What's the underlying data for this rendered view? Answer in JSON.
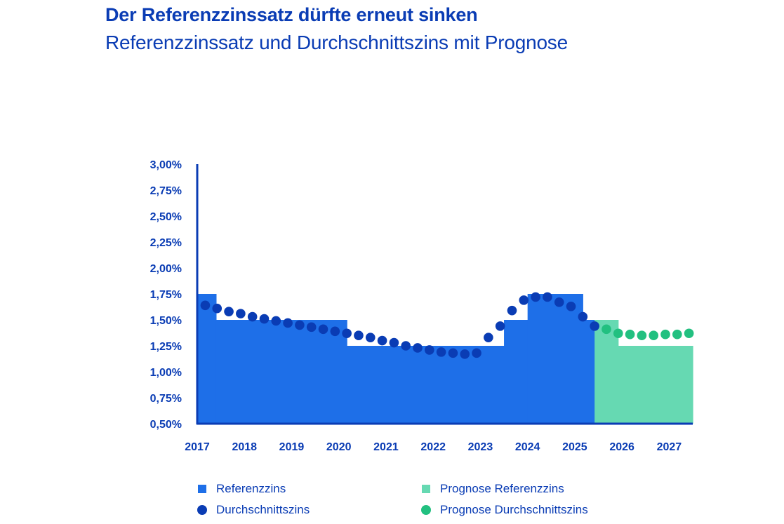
{
  "header": {
    "title": "Der Referenzzinssatz dürfte erneut sinken",
    "subtitle": "Referenzzinssatz und Durchschnittszins mit Prognose"
  },
  "legend": {
    "ref": "Referenzzins",
    "avg": "Durchschnittszins",
    "ref_forecast": "Prognose Referenzzins",
    "avg_forecast": "Prognose Durchschnittszins"
  },
  "colors": {
    "ref": "#1e6fe8",
    "avg": "#0a3cb4",
    "ref_forecast": "#66d9b2",
    "avg_forecast": "#22c080",
    "axis": "#0a3cb4"
  },
  "chart_data": {
    "type": "area",
    "title": "Der Referenzzinssatz dürfte erneut sinken",
    "subtitle": "Referenzzinssatz und Durchschnittszins mit Prognose",
    "xlabel": "",
    "ylabel": "",
    "ylim": [
      0.5,
      3.0
    ],
    "xlim": [
      2017,
      2027.5
    ],
    "y_ticks": [
      "0,50%",
      "0,75%",
      "1,00%",
      "1,25%",
      "1,50%",
      "1,75%",
      "2,00%",
      "2,25%",
      "2,50%",
      "2,75%",
      "3,00%"
    ],
    "x_ticks": [
      "2017",
      "2018",
      "2019",
      "2020",
      "2021",
      "2022",
      "2023",
      "2024",
      "2025",
      "2026",
      "2027"
    ],
    "grid": false,
    "legend_position": "bottom",
    "series": [
      {
        "name": "Referenzzins",
        "kind": "step-area",
        "steps": [
          {
            "from": 2017.0,
            "to": 2017.4,
            "value": 1.75
          },
          {
            "from": 2017.4,
            "to": 2020.17,
            "value": 1.5
          },
          {
            "from": 2020.17,
            "to": 2023.5,
            "value": 1.25
          },
          {
            "from": 2023.5,
            "to": 2024.0,
            "value": 1.5
          },
          {
            "from": 2024.0,
            "to": 2025.17,
            "value": 1.75
          },
          {
            "from": 2025.17,
            "to": 2025.42,
            "value": 1.5
          }
        ]
      },
      {
        "name": "Prognose Referenzzins",
        "kind": "step-area",
        "steps": [
          {
            "from": 2025.42,
            "to": 2025.92,
            "value": 1.5
          },
          {
            "from": 2025.92,
            "to": 2027.5,
            "value": 1.25
          }
        ]
      },
      {
        "name": "Durchschnittszins",
        "kind": "scatter",
        "x": [
          2017.17,
          2017.42,
          2017.67,
          2017.92,
          2018.17,
          2018.42,
          2018.67,
          2018.92,
          2019.17,
          2019.42,
          2019.67,
          2019.92,
          2020.17,
          2020.42,
          2020.67,
          2020.92,
          2021.17,
          2021.42,
          2021.67,
          2021.92,
          2022.17,
          2022.42,
          2022.67,
          2022.92,
          2023.17,
          2023.42,
          2023.67,
          2023.92,
          2024.17,
          2024.42,
          2024.67,
          2024.92,
          2025.17,
          2025.42
        ],
        "y": [
          1.64,
          1.61,
          1.58,
          1.56,
          1.53,
          1.51,
          1.49,
          1.47,
          1.45,
          1.43,
          1.41,
          1.39,
          1.37,
          1.35,
          1.33,
          1.3,
          1.28,
          1.25,
          1.23,
          1.21,
          1.19,
          1.18,
          1.17,
          1.18,
          1.33,
          1.44,
          1.59,
          1.69,
          1.72,
          1.72,
          1.67,
          1.63,
          1.53,
          1.44
        ]
      },
      {
        "name": "Prognose Durchschnittszins",
        "kind": "scatter",
        "x": [
          2025.67,
          2025.92,
          2026.17,
          2026.42,
          2026.67,
          2026.92,
          2027.17,
          2027.42
        ],
        "y": [
          1.41,
          1.37,
          1.36,
          1.35,
          1.35,
          1.36,
          1.36,
          1.37
        ]
      }
    ]
  }
}
